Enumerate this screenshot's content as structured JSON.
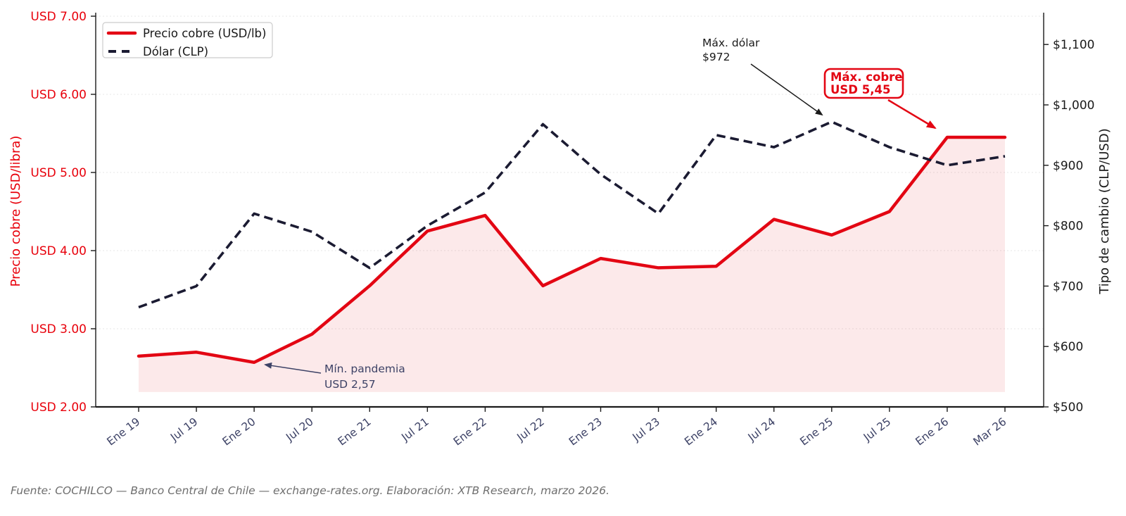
{
  "chart_data": {
    "type": "line",
    "title": "",
    "categories": [
      "Ene 19",
      "Jul 19",
      "Ene 20",
      "Jul 20",
      "Ene 21",
      "Jul 21",
      "Ene 22",
      "Jul 22",
      "Ene 23",
      "Jul 23",
      "Ene 24",
      "Jul 24",
      "Ene 25",
      "Jul 25",
      "Ene 26",
      "Mar 26"
    ],
    "series": [
      {
        "name": "Precio cobre (USD/lb)",
        "axis": "left",
        "style": "solid",
        "fill": true,
        "values": [
          2.65,
          2.7,
          2.57,
          2.93,
          3.55,
          4.25,
          4.45,
          3.55,
          3.9,
          3.78,
          3.8,
          4.4,
          4.2,
          4.5,
          5.45,
          5.45
        ]
      },
      {
        "name": "Dólar (CLP)",
        "axis": "right",
        "style": "dashed",
        "fill": false,
        "values": [
          665,
          700,
          820,
          790,
          730,
          800,
          855,
          968,
          885,
          820,
          950,
          930,
          972,
          930,
          900,
          915
        ]
      }
    ],
    "left_axis": {
      "label": "Precio cobre (USD/libra)",
      "min": 2.0,
      "max": 7.0,
      "tick_values": [
        2,
        3,
        4,
        5,
        6,
        7
      ],
      "tick_labels": [
        "USD 2.00",
        "USD 3.00",
        "USD 4.00",
        "USD 5.00",
        "USD 6.00",
        "USD 7.00"
      ]
    },
    "right_axis": {
      "label": "Tipo de cambio (CLP/USD)",
      "min": 500,
      "max": 1100,
      "tick_values": [
        500,
        600,
        700,
        800,
        900,
        1000,
        1100
      ],
      "tick_labels": [
        "$500",
        "$600",
        "$700",
        "$800",
        "$900",
        "$1,000",
        "$1,100"
      ]
    },
    "fill_baseline": 2.19,
    "grid": "horizontal-dashed",
    "legend_position": "upper-left"
  },
  "legend": {
    "items": [
      {
        "label": "Precio cobre (USD/lb)"
      },
      {
        "label": "Dólar (CLP)"
      }
    ]
  },
  "annotations": {
    "max_dolar": {
      "line1": "Máx. dólar",
      "line2": "$972",
      "target_series": "Dólar (CLP)",
      "target_category": "Ene 25"
    },
    "max_cobre": {
      "line1": "Máx. cobre",
      "line2": "USD 5,45",
      "target_series": "Precio cobre (USD/lb)",
      "target_category": "Ene 26"
    },
    "min_pandemia": {
      "line1": "Mín. pandemia",
      "line2": "USD 2,57",
      "target_series": "Precio cobre (USD/lb)",
      "target_category": "Ene 20"
    }
  },
  "footer": {
    "text": "Fuente: COCHILCO — Banco Central de Chile — exchange-rates.org. Elaboración: XTB Research, marzo 2026."
  },
  "colors": {
    "copper_red": "#e30613",
    "dollar_navy": "#1b1b32",
    "copper_fill": "rgba(227,6,19,0.09)",
    "left_axis_red": "#e8000b",
    "axis_ink": "#1a1a1a",
    "x_tick_navy": "#3d4266",
    "grid_gray": "#e7e7e7",
    "annotation_navy": "#3d4266",
    "footer_gray": "#6e6e6e",
    "legend_border": "#cccccc"
  }
}
